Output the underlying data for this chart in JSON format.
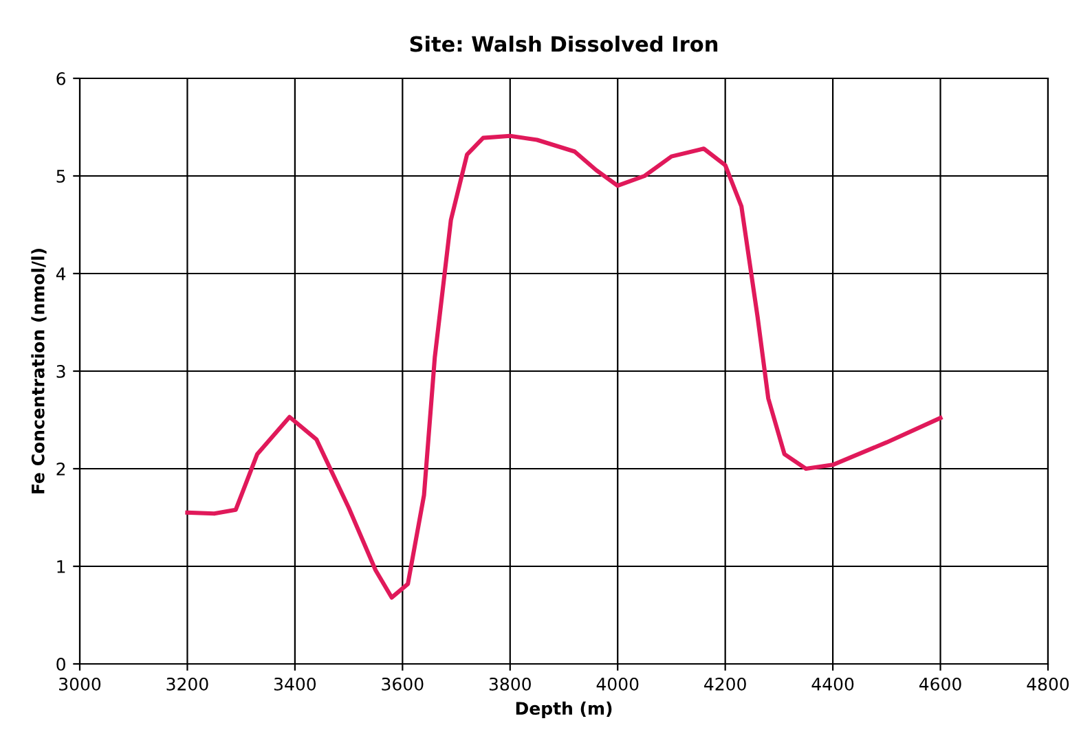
{
  "chart_data": {
    "type": "line",
    "title": "Site: Walsh Dissolved Iron",
    "xlabel": "Depth (m)",
    "ylabel": "Fe Concentration (nmol/l)",
    "x": [
      3200,
      3250,
      3290,
      3330,
      3390,
      3440,
      3500,
      3550,
      3580,
      3610,
      3640,
      3660,
      3690,
      3720,
      3750,
      3800,
      3850,
      3920,
      3960,
      4000,
      4050,
      4100,
      4160,
      4200,
      4230,
      4260,
      4280,
      4310,
      4350,
      4400,
      4500,
      4600
    ],
    "series": [
      {
        "color": "#e0195a",
        "values": [
          1.55,
          1.54,
          1.58,
          2.15,
          2.53,
          2.3,
          1.6,
          0.96,
          0.68,
          0.82,
          1.73,
          3.14,
          4.55,
          5.22,
          5.39,
          5.41,
          5.37,
          5.25,
          5.06,
          4.9,
          5.0,
          5.2,
          5.28,
          5.11,
          4.69,
          3.56,
          2.72,
          2.15,
          2.0,
          2.04,
          2.27,
          2.52
        ]
      }
    ],
    "xlim": [
      3000,
      4800
    ],
    "xticks": [
      3000,
      3200,
      3400,
      3600,
      3800,
      4000,
      4200,
      4400,
      4600,
      4800
    ],
    "ylim": [
      0,
      6
    ],
    "yticks": [
      0,
      1,
      2,
      3,
      4,
      5,
      6
    ],
    "grid": true,
    "marker": "none",
    "line_style": "solid",
    "legend": false
  }
}
